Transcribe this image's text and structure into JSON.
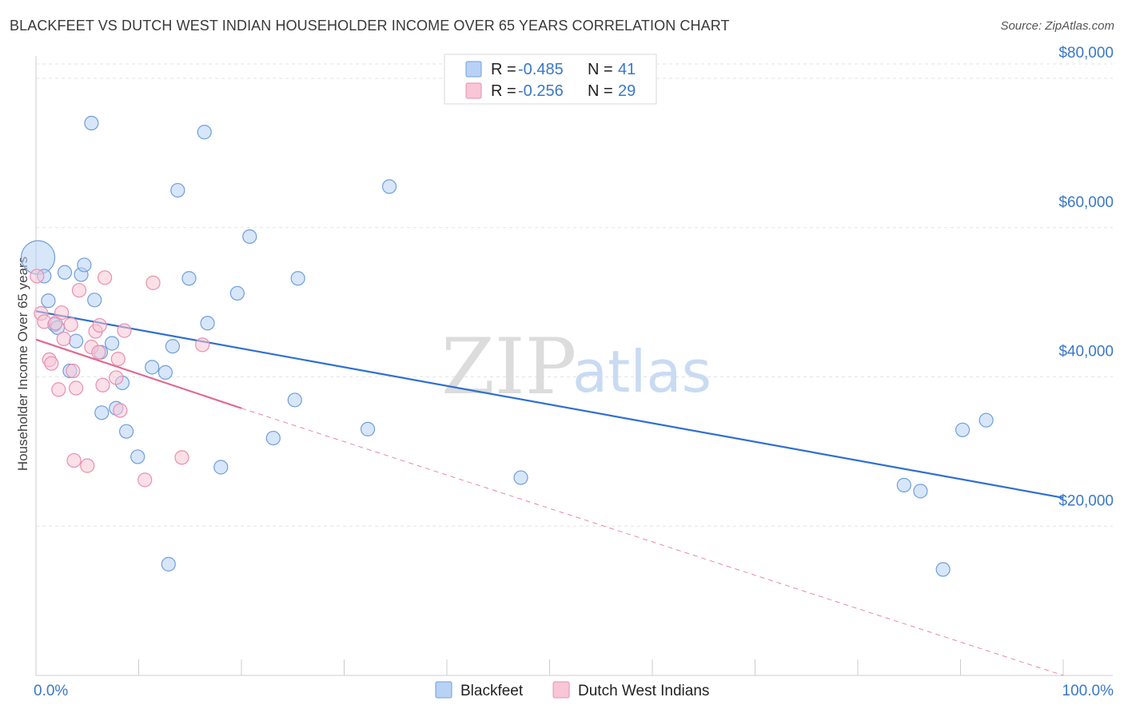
{
  "title": "BLACKFEET VS DUTCH WEST INDIAN HOUSEHOLDER INCOME OVER 65 YEARS CORRELATION CHART",
  "source": "Source: ZipAtlas.com",
  "watermark": {
    "zip": "ZIP",
    "atlas": "atlas"
  },
  "colors": {
    "blackfeet_fill": "#b8d2f5",
    "blackfeet_stroke": "#6e9fdc",
    "blackfeet_line": "#2f6fcf",
    "dutch_fill": "#f8c6d6",
    "dutch_stroke": "#e98fae",
    "dutch_line": "#e06a92",
    "grid": "#e3e3e3",
    "axis_text": "#3a78c9"
  },
  "legend": {
    "rows": [
      {
        "r_label": "R = ",
        "r_value": "-0.485",
        "n_label": "N = ",
        "n_value": "41"
      },
      {
        "r_label": "R = ",
        "r_value": "-0.256",
        "n_label": "N = ",
        "n_value": "29"
      }
    ]
  },
  "bottom_legend": [
    "Blackfeet",
    "Dutch West Indians"
  ],
  "chart_data": {
    "type": "scatter",
    "title": "BLACKFEET VS DUTCH WEST INDIAN HOUSEHOLDER INCOME OVER 65 YEARS CORRELATION CHART",
    "xlabel": "",
    "ylabel": "Householder Income Over 65 years",
    "xlim": [
      0,
      100
    ],
    "ylim": [
      0,
      83000
    ],
    "x_tick_labels": [
      "0.0%",
      "100.0%"
    ],
    "y_ticks": [
      20000,
      40000,
      60000,
      80000
    ],
    "y_tick_labels": [
      "$20,000",
      "$40,000",
      "$60,000",
      "$80,000"
    ],
    "grid": true,
    "legend_position": "top-center",
    "series": [
      {
        "name": "Blackfeet",
        "R": -0.485,
        "N": 41,
        "points": [
          [
            0.2,
            56000,
            3
          ],
          [
            0.8,
            53500,
            1
          ],
          [
            1.2,
            50200,
            1
          ],
          [
            1.8,
            47000,
            1
          ],
          [
            2.1,
            46600,
            1
          ],
          [
            2.8,
            54000,
            1
          ],
          [
            3.3,
            40800,
            1
          ],
          [
            3.9,
            44800,
            1
          ],
          [
            4.4,
            53700,
            1
          ],
          [
            4.7,
            55000,
            1
          ],
          [
            5.4,
            74000,
            1
          ],
          [
            5.7,
            50300,
            1
          ],
          [
            6.3,
            43300,
            1
          ],
          [
            6.4,
            35200,
            1
          ],
          [
            7.4,
            44500,
            1
          ],
          [
            7.8,
            35800,
            1
          ],
          [
            8.4,
            39200,
            1
          ],
          [
            8.8,
            32700,
            1
          ],
          [
            9.9,
            29300,
            1
          ],
          [
            11.3,
            41300,
            1
          ],
          [
            12.6,
            40600,
            1
          ],
          [
            12.9,
            14900,
            1
          ],
          [
            13.3,
            44100,
            1
          ],
          [
            13.8,
            65000,
            1
          ],
          [
            14.9,
            53200,
            1
          ],
          [
            16.4,
            72800,
            1
          ],
          [
            16.7,
            47200,
            1
          ],
          [
            18.0,
            27900,
            1
          ],
          [
            19.6,
            51200,
            1
          ],
          [
            20.8,
            58800,
            1
          ],
          [
            23.1,
            31800,
            1
          ],
          [
            25.2,
            36900,
            1
          ],
          [
            25.5,
            53200,
            1
          ],
          [
            32.3,
            33000,
            1
          ],
          [
            34.4,
            65500,
            1
          ],
          [
            47.2,
            26500,
            1
          ],
          [
            84.5,
            25500,
            1
          ],
          [
            86.1,
            24700,
            1
          ],
          [
            88.3,
            14200,
            1
          ],
          [
            90.2,
            32900,
            1
          ],
          [
            92.5,
            34200,
            1
          ]
        ],
        "trend": {
          "x": [
            0,
            100
          ],
          "y": [
            48800,
            23800
          ]
        }
      },
      {
        "name": "Dutch West Indians",
        "R": -0.256,
        "N": 29,
        "points": [
          [
            0.1,
            53500,
            1
          ],
          [
            0.5,
            48500,
            1
          ],
          [
            0.8,
            47400,
            1
          ],
          [
            1.3,
            42300,
            1
          ],
          [
            1.5,
            41800,
            1
          ],
          [
            1.9,
            47200,
            1
          ],
          [
            2.2,
            38300,
            1
          ],
          [
            2.5,
            48600,
            1
          ],
          [
            2.7,
            45100,
            1
          ],
          [
            3.4,
            47000,
            1
          ],
          [
            3.6,
            40800,
            1
          ],
          [
            3.7,
            28800,
            1
          ],
          [
            3.9,
            38500,
            1
          ],
          [
            4.2,
            51600,
            1
          ],
          [
            5.0,
            28100,
            1
          ],
          [
            5.4,
            44000,
            1
          ],
          [
            5.8,
            46100,
            1
          ],
          [
            6.1,
            43300,
            1
          ],
          [
            6.2,
            46900,
            1
          ],
          [
            6.5,
            38900,
            1
          ],
          [
            6.7,
            53300,
            1
          ],
          [
            7.8,
            39900,
            1
          ],
          [
            8.0,
            42400,
            1
          ],
          [
            8.2,
            35500,
            1
          ],
          [
            8.6,
            46200,
            1
          ],
          [
            10.6,
            26200,
            1
          ],
          [
            11.4,
            52600,
            1
          ],
          [
            14.2,
            29200,
            1
          ],
          [
            16.2,
            44300,
            1
          ]
        ],
        "trend": {
          "x": [
            0,
            20
          ],
          "y": [
            45000,
            35800
          ]
        },
        "trend_extension": {
          "x": [
            20,
            100
          ],
          "y": [
            35800,
            0
          ]
        }
      }
    ]
  }
}
